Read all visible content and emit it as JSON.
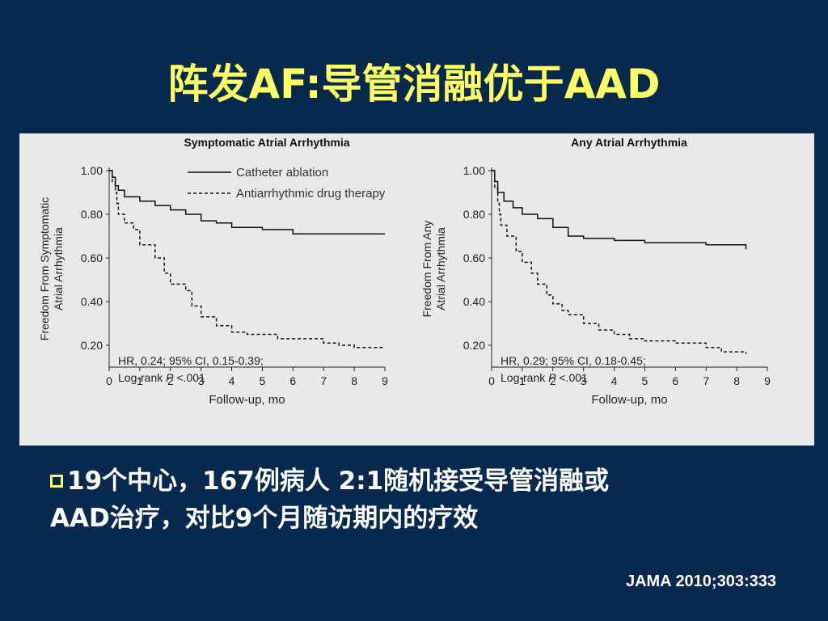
{
  "title": "阵发AF:导管消融优于AAD",
  "bullet": {
    "line1": "19个中心，167例病人 2:1随机接受导管消融或",
    "line2": "AAD治疗，对比9个月随访期内的疗效"
  },
  "citation": "JAMA 2010;303:333",
  "colors": {
    "background": "#06294d",
    "title": "#ffff66",
    "text": "#ffffff",
    "panel": "#e9e9e9",
    "bullet_box": "#ffff66"
  },
  "icons": {
    "bullet": "hollow-square-bullet"
  },
  "chart_data": [
    {
      "type": "line",
      "title": "Symptomatic Atrial Arrhythmia",
      "xlabel": "Follow-up, mo",
      "ylabel": "Freedom From Symptomatic Atrial Arrhythmia",
      "ylabel_lines": [
        "Freedom From Symptomatic",
        "Atrial Arrhythmia"
      ],
      "xlim": [
        0,
        9
      ],
      "ylim": [
        0.1,
        1.0
      ],
      "xticks": [
        0,
        1,
        2,
        3,
        4,
        5,
        6,
        7,
        8,
        9
      ],
      "yticks": [
        0.2,
        0.4,
        0.6,
        0.8,
        1.0
      ],
      "ytick_labels": [
        "0.20",
        "0.40",
        "0.60",
        "0.80",
        "1.00"
      ],
      "legend": "top-right",
      "annotation": {
        "line1": "HR, 0.24; 95% CI, 0.15-0.39;",
        "line2_prefix": "Log-rank ",
        "line2_italic": "P",
        "line2_suffix": " <.001"
      },
      "series": [
        {
          "name": "Catheter ablation",
          "style": "solid",
          "x": [
            0,
            0.1,
            0.2,
            0.3,
            0.5,
            1.0,
            1.5,
            2.0,
            2.5,
            3.0,
            3.5,
            4.0,
            5.0,
            6.0,
            7.0,
            8.0,
            9.0
          ],
          "y": [
            1.0,
            0.97,
            0.93,
            0.91,
            0.88,
            0.86,
            0.84,
            0.82,
            0.8,
            0.77,
            0.76,
            0.74,
            0.73,
            0.71,
            0.71,
            0.71,
            0.71
          ]
        },
        {
          "name": "Antiarrhythmic drug therapy",
          "style": "dashed",
          "x": [
            0,
            0.1,
            0.2,
            0.25,
            0.3,
            0.5,
            0.8,
            1.0,
            1.5,
            1.8,
            2.0,
            2.5,
            2.7,
            3.0,
            3.5,
            4.0,
            4.5,
            5.0,
            5.5,
            6.0,
            7.0,
            7.5,
            8.0,
            9.0
          ],
          "y": [
            1.0,
            0.95,
            0.9,
            0.85,
            0.8,
            0.76,
            0.73,
            0.66,
            0.6,
            0.53,
            0.48,
            0.45,
            0.38,
            0.33,
            0.29,
            0.26,
            0.25,
            0.25,
            0.23,
            0.23,
            0.21,
            0.2,
            0.19,
            0.19
          ]
        }
      ]
    },
    {
      "type": "line",
      "title": "Any Atrial Arrhythmia",
      "xlabel": "Follow-up, mo",
      "ylabel": "Freedom From Any Atrial Arrhythmia",
      "ylabel_lines": [
        "Freedom From Any",
        "Atrial Arrhythmia"
      ],
      "xlim": [
        0,
        9
      ],
      "ylim": [
        0.1,
        1.0
      ],
      "xticks": [
        0,
        1,
        2,
        3,
        4,
        5,
        6,
        7,
        8,
        9
      ],
      "yticks": [
        0.2,
        0.4,
        0.6,
        0.8,
        1.0
      ],
      "ytick_labels": [
        "0.20",
        "0.40",
        "0.60",
        "0.80",
        "1.00"
      ],
      "annotation": {
        "line1": "HR, 0.29; 95% CI, 0.18-0.45;",
        "line2_prefix": "Log-rank ",
        "line2_italic": "P",
        "line2_suffix": " <.001"
      },
      "series": [
        {
          "name": "Catheter ablation",
          "style": "solid",
          "x": [
            0,
            0.1,
            0.2,
            0.4,
            0.7,
            1.0,
            1.5,
            2.0,
            2.5,
            3.0,
            4.0,
            5.0,
            6.0,
            7.0,
            8.0,
            8.3
          ],
          "y": [
            1.0,
            0.95,
            0.9,
            0.86,
            0.83,
            0.8,
            0.78,
            0.74,
            0.7,
            0.69,
            0.68,
            0.67,
            0.67,
            0.66,
            0.66,
            0.64
          ]
        },
        {
          "name": "Antiarrhythmic drug therapy",
          "style": "dashed",
          "x": [
            0,
            0.1,
            0.2,
            0.25,
            0.3,
            0.5,
            0.8,
            1.0,
            1.3,
            1.5,
            1.8,
            2.0,
            2.3,
            2.5,
            3.0,
            3.5,
            4.0,
            4.5,
            5.0,
            6.0,
            7.0,
            7.5,
            8.3
          ],
          "y": [
            1.0,
            0.92,
            0.85,
            0.8,
            0.75,
            0.7,
            0.63,
            0.58,
            0.53,
            0.48,
            0.43,
            0.39,
            0.36,
            0.34,
            0.3,
            0.27,
            0.25,
            0.23,
            0.22,
            0.21,
            0.19,
            0.17,
            0.16
          ]
        }
      ]
    }
  ]
}
